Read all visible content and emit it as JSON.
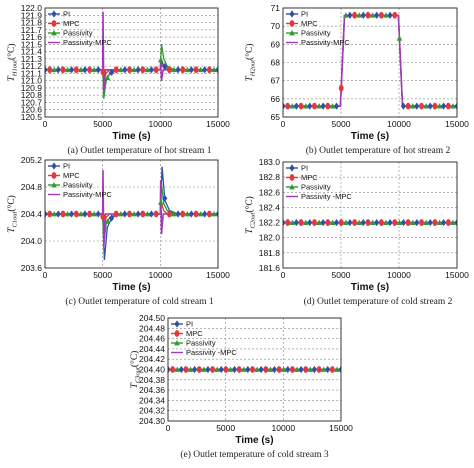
{
  "chart_data": [
    {
      "type": "line",
      "caption": "(a) Outlet temperature of hot stream 1",
      "xlabel": "Time (s)",
      "ylabel": "T",
      "ylabel_sub": "H1out",
      "ylabel_unit": "(°C)",
      "xlim": [
        0,
        15000
      ],
      "ylim": [
        120.5,
        122.0
      ],
      "xticks": [
        "0",
        "5000",
        "10000",
        "15000"
      ],
      "yticks": [
        "120.5",
        "120.6",
        "120.7",
        "120.8",
        "120.9",
        "121.0",
        "121.1",
        "121.2",
        "121.3",
        "121.4",
        "121.5",
        "121.6",
        "121.7",
        "121.8",
        "121.9",
        "122.0"
      ],
      "grid": true,
      "legend": [
        "PI",
        "MPC",
        "Passivity",
        "Passivity-MPC"
      ],
      "series": [
        {
          "name": "PI",
          "x": [
            0,
            4900,
            5000,
            5150,
            5400,
            5800,
            6500,
            9900,
            10000,
            10150,
            10400,
            10800,
            11500,
            15000
          ],
          "values": [
            121.15,
            121.15,
            121.15,
            120.9,
            121.05,
            121.12,
            121.15,
            121.15,
            121.15,
            121.25,
            121.19,
            121.16,
            121.15,
            121.15
          ]
        },
        {
          "name": "MPC",
          "x": [
            0,
            4900,
            5000,
            5100,
            5300,
            5600,
            9900,
            10000,
            10100,
            10300,
            10600,
            15000
          ],
          "values": [
            121.15,
            121.15,
            121.15,
            121.0,
            121.1,
            121.15,
            121.15,
            121.15,
            121.22,
            121.18,
            121.15,
            121.15
          ]
        },
        {
          "name": "Passivity",
          "x": [
            0,
            4900,
            5000,
            5100,
            5300,
            5600,
            6200,
            9900,
            10000,
            10100,
            10300,
            10600,
            11200,
            15000
          ],
          "values": [
            121.15,
            121.15,
            121.15,
            120.75,
            121.0,
            121.1,
            121.15,
            121.15,
            121.15,
            121.5,
            121.3,
            121.2,
            121.15,
            121.15
          ]
        },
        {
          "name": "Passivity-MPC",
          "x": [
            0,
            4950,
            5000,
            5030,
            5100,
            5250,
            9950,
            10000,
            10030,
            10100,
            10250,
            15000
          ],
          "values": [
            121.15,
            121.15,
            121.15,
            121.95,
            120.85,
            121.15,
            121.15,
            121.15,
            121.25,
            121.0,
            121.15,
            121.15
          ]
        }
      ]
    },
    {
      "type": "line",
      "caption": "(b) Outlet temperature of hot stream 2",
      "xlabel": "Time (s)",
      "ylabel": "T",
      "ylabel_sub": "H2out",
      "ylabel_unit": "(°C)",
      "xlim": [
        0,
        15000
      ],
      "ylim": [
        65,
        71
      ],
      "xticks": [
        "0",
        "5000",
        "10000",
        "15000"
      ],
      "yticks": [
        "65",
        "66",
        "67",
        "68",
        "69",
        "70",
        "71"
      ],
      "grid": true,
      "legend": [
        "PI",
        "MPC",
        "Passivity",
        "Passivity-MPC"
      ],
      "series": [
        {
          "name": "PI",
          "x": [
            0,
            4950,
            5300,
            9950,
            10300,
            15000
          ],
          "values": [
            65.6,
            65.6,
            70.6,
            70.6,
            65.6,
            65.6
          ]
        },
        {
          "name": "MPC",
          "x": [
            0,
            4950,
            5300,
            9950,
            10300,
            15000
          ],
          "values": [
            65.6,
            65.6,
            70.6,
            70.6,
            65.6,
            65.6
          ]
        },
        {
          "name": "Passivity",
          "x": [
            0,
            4950,
            5300,
            9950,
            10300,
            15000
          ],
          "values": [
            65.6,
            65.6,
            70.6,
            70.6,
            65.6,
            65.6
          ]
        },
        {
          "name": "Passivity-MPC",
          "x": [
            0,
            4950,
            5300,
            9950,
            10300,
            15000
          ],
          "values": [
            65.6,
            65.6,
            70.6,
            70.6,
            65.6,
            65.6
          ]
        }
      ]
    },
    {
      "type": "line",
      "caption": "(c) Outlet temperature of cold stream 1",
      "xlabel": "Time (s)",
      "ylabel": "T",
      "ylabel_sub": "C1out",
      "ylabel_unit": "(°C)",
      "xlim": [
        0,
        15000
      ],
      "ylim": [
        203.6,
        205.2
      ],
      "xticks": [
        "0",
        "5000",
        "10000",
        "15000"
      ],
      "yticks": [
        "203.6",
        "204.0",
        "204.4",
        "204.8",
        "205.2"
      ],
      "grid": true,
      "legend": [
        "PI",
        "MPC",
        "Passivity",
        "Passivity-MPC"
      ],
      "series": [
        {
          "name": "PI",
          "x": [
            0,
            4900,
            5000,
            5150,
            5400,
            5800,
            6500,
            9900,
            10000,
            10150,
            10400,
            10800,
            11500,
            15000
          ],
          "values": [
            204.4,
            204.4,
            204.4,
            203.72,
            204.2,
            204.35,
            204.4,
            204.4,
            204.4,
            205.1,
            204.6,
            204.45,
            204.4,
            204.4
          ]
        },
        {
          "name": "MPC",
          "x": [
            0,
            4900,
            5000,
            5100,
            5300,
            5600,
            9900,
            10000,
            10100,
            10300,
            10600,
            15000
          ],
          "values": [
            204.4,
            204.4,
            204.4,
            204.2,
            204.35,
            204.4,
            204.4,
            204.4,
            204.55,
            204.45,
            204.4,
            204.4
          ]
        },
        {
          "name": "Passivity",
          "x": [
            0,
            4900,
            5000,
            5100,
            5300,
            5600,
            6200,
            9900,
            10000,
            10100,
            10300,
            10600,
            11200,
            15000
          ],
          "values": [
            204.4,
            204.4,
            204.4,
            203.95,
            204.25,
            204.35,
            204.4,
            204.4,
            204.4,
            204.85,
            204.55,
            204.45,
            204.4,
            204.4
          ]
        },
        {
          "name": "Passivity-MPC",
          "x": [
            0,
            4950,
            5000,
            5030,
            5100,
            5250,
            9950,
            10000,
            10030,
            10100,
            10250,
            15000
          ],
          "values": [
            204.4,
            204.4,
            204.4,
            205.05,
            203.9,
            204.4,
            204.4,
            204.4,
            204.9,
            204.1,
            204.4,
            204.4
          ]
        }
      ]
    },
    {
      "type": "line",
      "caption": "(d) Outlet temperature of cold stream 2",
      "xlabel": "Time (s)",
      "ylabel": "T",
      "ylabel_sub": "C2out",
      "ylabel_unit": "(°C)",
      "xlim": [
        0,
        15000
      ],
      "ylim": [
        181.6,
        183.0
      ],
      "xticks": [
        "0",
        "5000",
        "10000",
        "15000"
      ],
      "yticks": [
        "181.6",
        "181.8",
        "182.0",
        "182.2",
        "182.4",
        "182.6",
        "182.8",
        "183.0"
      ],
      "grid": true,
      "legend": [
        "PI",
        "MPC",
        "Passivity",
        "Passivity -MPC"
      ],
      "series": [
        {
          "name": "PI",
          "x": [
            0,
            15000
          ],
          "values": [
            182.2,
            182.2
          ]
        },
        {
          "name": "MPC",
          "x": [
            0,
            15000
          ],
          "values": [
            182.2,
            182.2
          ]
        },
        {
          "name": "Passivity",
          "x": [
            0,
            15000
          ],
          "values": [
            182.2,
            182.2
          ]
        },
        {
          "name": "Passivity -MPC",
          "x": [
            0,
            15000
          ],
          "values": [
            182.2,
            182.2
          ]
        }
      ]
    },
    {
      "type": "line",
      "caption": "(e) Outlet temperature of cold stream 3",
      "xlabel": "Time (s)",
      "ylabel": "T",
      "ylabel_sub": "C3out",
      "ylabel_unit": "(°C)",
      "xlim": [
        0,
        15000
      ],
      "ylim": [
        204.3,
        204.5
      ],
      "xticks": [
        "0",
        "5000",
        "10000",
        "15000"
      ],
      "yticks": [
        "204.30",
        "204.32",
        "204.34",
        "204.36",
        "204.38",
        "204.40",
        "204.42",
        "204.44",
        "204.46",
        "204.48",
        "204.50"
      ],
      "grid": true,
      "legend": [
        "PI",
        "MPC",
        "Passivity",
        "Passivity -MPC"
      ],
      "series": [
        {
          "name": "PI",
          "x": [
            0,
            15000
          ],
          "values": [
            204.4,
            204.4
          ]
        },
        {
          "name": "MPC",
          "x": [
            0,
            15000
          ],
          "values": [
            204.4,
            204.4
          ]
        },
        {
          "name": "Passivity",
          "x": [
            0,
            15000
          ],
          "values": [
            204.4,
            204.4
          ]
        },
        {
          "name": "Passivity -MPC",
          "x": [
            0,
            15000
          ],
          "values": [
            204.4,
            204.4
          ]
        }
      ]
    }
  ],
  "style": {
    "colors": {
      "PI": "#2f4fa8",
      "MPC": "#e23a3a",
      "Passivity": "#2f9a2f",
      "Passivity-MPC": "#a23ab8"
    },
    "markers": {
      "PI": "diamond",
      "MPC": "circle",
      "Passivity": "triangle",
      "Passivity-MPC": "none"
    }
  }
}
